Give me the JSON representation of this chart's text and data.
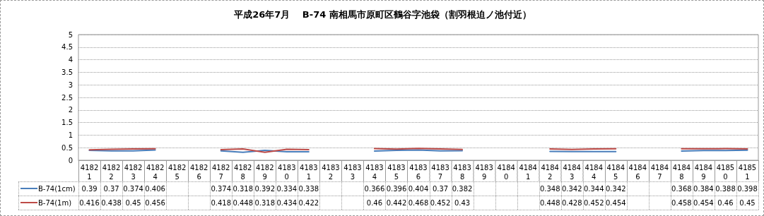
{
  "chart_data": {
    "type": "line",
    "title": "平成26年7月　 B-74 南相馬市原町区鶴谷字池袋（割羽根迫ノ池付近）",
    "categories": [
      "41821",
      "41822",
      "41823",
      "41824",
      "41825",
      "41826",
      "41827",
      "41828",
      "41829",
      "41830",
      "41831",
      "41832",
      "41833",
      "41834",
      "41835",
      "41836",
      "41837",
      "41838",
      "41839",
      "41840",
      "41841",
      "41842",
      "41843",
      "41844",
      "41845",
      "41846",
      "41847",
      "41848",
      "41849",
      "41850",
      "41851"
    ],
    "series": [
      {
        "name": "B-74(1cm)",
        "color": "#4a7ebb",
        "values": [
          0.39,
          0.37,
          0.374,
          0.406,
          null,
          null,
          0.374,
          0.318,
          0.392,
          0.334,
          0.338,
          null,
          null,
          0.366,
          0.396,
          0.404,
          0.37,
          0.382,
          null,
          null,
          null,
          0.348,
          0.342,
          0.344,
          0.342,
          null,
          null,
          0.368,
          0.384,
          0.388,
          0.398
        ]
      },
      {
        "name": "B-74(1m)",
        "color": "#be4b48",
        "values": [
          0.416,
          0.438,
          0.45,
          0.456,
          null,
          null,
          0.418,
          0.448,
          0.318,
          0.434,
          0.422,
          null,
          null,
          0.46,
          0.442,
          0.468,
          0.452,
          0.43,
          null,
          null,
          null,
          0.448,
          0.428,
          0.452,
          0.454,
          null,
          null,
          0.458,
          0.454,
          0.46,
          0.45
        ]
      }
    ],
    "ylim": [
      0,
      5
    ],
    "yticks": [
      0,
      0.5,
      1,
      1.5,
      2,
      2.5,
      3,
      3.5,
      4,
      4.5,
      5
    ],
    "grid": "y",
    "legend": "bottom left",
    "data_labels": true,
    "marker": "none",
    "line_style": "solid"
  }
}
